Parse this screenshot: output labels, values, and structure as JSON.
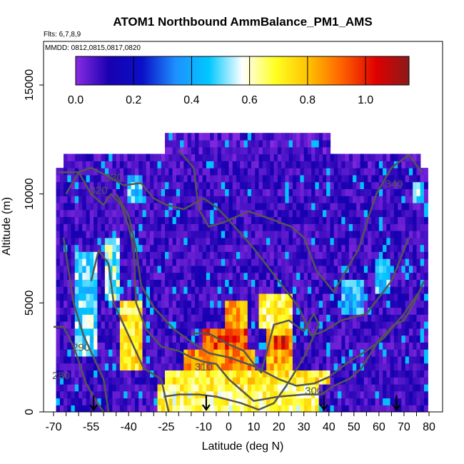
{
  "chart_data": {
    "type": "heatmap",
    "title": "ATOM1 Northbound AmmBalance_PM1_AMS",
    "flights_note": "Flts: 6,7,8,9",
    "dates_note": "MMDD: 0812,0815,0817,0820",
    "xlabel": "Latitude (deg N)",
    "ylabel": "Altitude (m)",
    "xlim": [
      -70,
      80
    ],
    "ylim": [
      0,
      17000
    ],
    "x_ticks": [
      {
        "value": -70,
        "label": "-70"
      },
      {
        "value": -55,
        "label": "-55"
      },
      {
        "value": -40,
        "label": "-40"
      },
      {
        "value": -25,
        "label": "-25"
      },
      {
        "value": -10,
        "label": "-10"
      },
      {
        "value": 0,
        "label": "0"
      },
      {
        "value": 10,
        "label": "10"
      },
      {
        "value": 20,
        "label": "20"
      },
      {
        "value": 30,
        "label": "30"
      },
      {
        "value": 40,
        "label": "40"
      },
      {
        "value": 50,
        "label": "50"
      },
      {
        "value": 60,
        "label": "60"
      },
      {
        "value": 70,
        "label": "70"
      },
      {
        "value": 80,
        "label": "80"
      }
    ],
    "y_ticks": [
      {
        "value": 0,
        "label": "0"
      },
      {
        "value": 5000,
        "label": "5000"
      },
      {
        "value": 10000,
        "label": "10000"
      },
      {
        "value": 15000,
        "label": "15000"
      }
    ],
    "colorbar": {
      "range": [
        0.0,
        1.15
      ],
      "ticks": [
        {
          "value": 0.0,
          "label": "0.0"
        },
        {
          "value": 0.2,
          "label": "0.2"
        },
        {
          "value": 0.4,
          "label": "0.4"
        },
        {
          "value": 0.6,
          "label": "0.6"
        },
        {
          "value": 0.8,
          "label": "0.8"
        },
        {
          "value": 1.0,
          "label": "1.0"
        }
      ],
      "stops": [
        "#8a2be2",
        "#1800b0",
        "#0a10c8",
        "#1e90ff",
        "#00c8ff",
        "#ffffff",
        "#ffff20",
        "#ffc000",
        "#ff6000",
        "#e00000",
        "#8b1a1a"
      ]
    },
    "field_regions": [
      {
        "lat_min": -69,
        "lat_max": 79,
        "alt_min": 0,
        "alt_max": 11300,
        "value": 0.08
      },
      {
        "lat_min": -66,
        "lat_max": 76,
        "alt_min": 11300,
        "alt_max": 11800,
        "value": 0.07
      },
      {
        "lat_min": -25,
        "lat_max": 40,
        "alt_min": 11800,
        "alt_max": 12800,
        "value": 0.06
      },
      {
        "lat_min": -62,
        "lat_max": -52,
        "alt_min": 2500,
        "alt_max": 7500,
        "value": 0.5
      },
      {
        "lat_min": -50,
        "lat_max": -44,
        "alt_min": 5000,
        "alt_max": 8000,
        "value": 0.55
      },
      {
        "lat_min": -44,
        "lat_max": -34,
        "alt_min": 2000,
        "alt_max": 5000,
        "value": 0.72
      },
      {
        "lat_min": -40,
        "lat_max": -34,
        "alt_min": 9500,
        "alt_max": 11000,
        "value": 0.45
      },
      {
        "lat_min": 58,
        "lat_max": 64,
        "alt_min": 5500,
        "alt_max": 7000,
        "value": 0.45
      },
      {
        "lat_min": 45,
        "lat_max": 54,
        "alt_min": 4500,
        "alt_max": 6200,
        "value": 0.42
      },
      {
        "lat_min": 73,
        "lat_max": 78,
        "alt_min": 9500,
        "alt_max": 10500,
        "value": 0.5
      },
      {
        "lat_min": -28,
        "lat_max": 36,
        "alt_min": 0,
        "alt_max": 1200,
        "value": 0.66
      },
      {
        "lat_min": -26,
        "lat_max": 40,
        "alt_min": 1200,
        "alt_max": 2000,
        "value": 0.72
      },
      {
        "lat_min": -18,
        "lat_max": 10,
        "alt_min": 2000,
        "alt_max": 3000,
        "value": 0.86
      },
      {
        "lat_min": -10,
        "lat_max": 8,
        "alt_min": 3000,
        "alt_max": 4000,
        "value": 0.95
      },
      {
        "lat_min": -2,
        "lat_max": 8,
        "alt_min": 4000,
        "alt_max": 5200,
        "value": 0.82
      },
      {
        "lat_min": 15,
        "lat_max": 26,
        "alt_min": 2000,
        "alt_max": 4000,
        "value": 0.82
      },
      {
        "lat_min": 18,
        "lat_max": 24,
        "alt_min": 2800,
        "alt_max": 3400,
        "value": 1.02
      },
      {
        "lat_min": 12,
        "lat_max": 25,
        "alt_min": 4000,
        "alt_max": 5400,
        "value": 0.68
      }
    ],
    "contours": [
      {
        "label": "280",
        "points": [
          [
            -70,
            3900
          ],
          [
            -66,
            3900
          ],
          [
            -62,
            3000
          ],
          [
            -59,
            2000
          ],
          [
            -57,
            1300
          ],
          [
            -53,
            500
          ],
          [
            -50,
            0
          ]
        ],
        "label_at": [
          -67,
          1500
        ]
      },
      {
        "label": "290",
        "points": [
          [
            -66,
            8000
          ],
          [
            -62,
            5000
          ],
          [
            -58,
            3500
          ],
          [
            -54,
            2500
          ],
          [
            -50,
            1500
          ],
          [
            -48,
            0
          ]
        ],
        "label_at": [
          -59,
          2800
        ]
      },
      {
        "label": "",
        "points": [
          [
            -55,
            6000
          ],
          [
            -52,
            7400
          ],
          [
            -48,
            6800
          ],
          [
            -46,
            5000
          ],
          [
            -40,
            3500
          ],
          [
            -34,
            2000
          ],
          [
            -27,
            1500
          ],
          [
            -24,
            0
          ]
        ],
        "label_at": null
      },
      {
        "label": "320",
        "points": [
          [
            -68,
            11000
          ],
          [
            -60,
            11000
          ],
          [
            -55,
            10000
          ],
          [
            -50,
            9500
          ],
          [
            -47,
            10000
          ],
          [
            -43,
            9500
          ],
          [
            -40,
            8500
          ],
          [
            -38,
            7500
          ],
          [
            -37,
            5000
          ],
          [
            -33,
            3800
          ],
          [
            -27,
            3000
          ],
          [
            -20,
            2800
          ],
          [
            -15,
            2500
          ],
          [
            -10,
            2300
          ],
          [
            -5,
            2200
          ],
          [
            0,
            1500
          ],
          [
            5,
            1000
          ],
          [
            10,
            500
          ],
          [
            20,
            700
          ],
          [
            30,
            800
          ],
          [
            37,
            800
          ],
          [
            42,
            1200
          ],
          [
            48,
            1500
          ],
          [
            53,
            2000
          ],
          [
            60,
            3300
          ],
          [
            66,
            4000
          ],
          [
            70,
            4200
          ],
          [
            74,
            5000
          ],
          [
            78,
            6000
          ]
        ],
        "label_at": [
          -52,
          10000
        ]
      },
      {
        "label": "310",
        "points": [
          [
            -45,
            10000
          ],
          [
            -40,
            9000
          ],
          [
            -37,
            7500
          ],
          [
            -35,
            5800
          ],
          [
            -30,
            4800
          ],
          [
            -22,
            3800
          ],
          [
            -15,
            3200
          ],
          [
            -8,
            2700
          ],
          [
            0,
            2500
          ],
          [
            5,
            2300
          ],
          [
            10,
            2100
          ],
          [
            15,
            1800
          ],
          [
            20,
            1500
          ],
          [
            27,
            1200
          ],
          [
            34,
            1300
          ],
          [
            40,
            1600
          ],
          [
            48,
            2300
          ],
          [
            55,
            2800
          ],
          [
            62,
            3400
          ],
          [
            70,
            4500
          ],
          [
            76,
            5500
          ]
        ],
        "label_at": [
          -10,
          1900
        ]
      },
      {
        "label": "330",
        "points": [
          [
            -65,
            10000
          ],
          [
            -60,
            11000
          ],
          [
            -55,
            11200
          ],
          [
            -48,
            10800
          ],
          [
            -42,
            10400
          ],
          [
            -35,
            10500
          ],
          [
            -30,
            9800
          ],
          [
            -25,
            9500
          ],
          [
            -18,
            9300
          ],
          [
            -10,
            9800
          ],
          [
            -5,
            9400
          ],
          [
            0,
            8800
          ],
          [
            10,
            7500
          ],
          [
            20,
            6000
          ],
          [
            28,
            4800
          ],
          [
            33,
            3500
          ],
          [
            38,
            3700
          ],
          [
            45,
            4200
          ],
          [
            55,
            4500
          ],
          [
            65,
            6000
          ],
          [
            72,
            8000
          ]
        ],
        "label_at": [
          -46,
          10600
        ]
      },
      {
        "label": "340",
        "points": [
          [
            -20,
            12000
          ],
          [
            -14,
            11200
          ],
          [
            -12,
            9300
          ],
          [
            -8,
            8500
          ],
          [
            -2,
            8700
          ],
          [
            8,
            9200
          ],
          [
            18,
            8800
          ],
          [
            25,
            8500
          ],
          [
            30,
            8000
          ],
          [
            35,
            6500
          ],
          [
            42,
            5500
          ],
          [
            47,
            6500
          ],
          [
            52,
            7500
          ],
          [
            56,
            9000
          ],
          [
            59,
            10000
          ],
          [
            65,
            11200
          ],
          [
            72,
            11800
          ],
          [
            77,
            11000
          ]
        ],
        "label_at": [
          66,
          10300
        ]
      },
      {
        "label": "300",
        "points": [
          [
            -15,
            3600
          ],
          [
            -8,
            3600
          ],
          [
            0,
            3100
          ],
          [
            6,
            2800
          ],
          [
            10,
            2200
          ],
          [
            13,
            1800
          ],
          [
            18,
            4000
          ],
          [
            24,
            4200
          ],
          [
            30,
            3700
          ],
          [
            34,
            4500
          ],
          [
            36,
            4000
          ],
          [
            30,
            2500
          ],
          [
            23,
            1200
          ],
          [
            18,
            400
          ],
          [
            12,
            100
          ],
          [
            5,
            400
          ],
          [
            -5,
            700
          ],
          [
            -12,
            800
          ],
          [
            -20,
            800
          ],
          [
            -26,
            700
          ]
        ],
        "label_at": [
          34,
          800
        ]
      }
    ],
    "flight_markers": [
      -54,
      -9,
      38,
      67
    ]
  }
}
